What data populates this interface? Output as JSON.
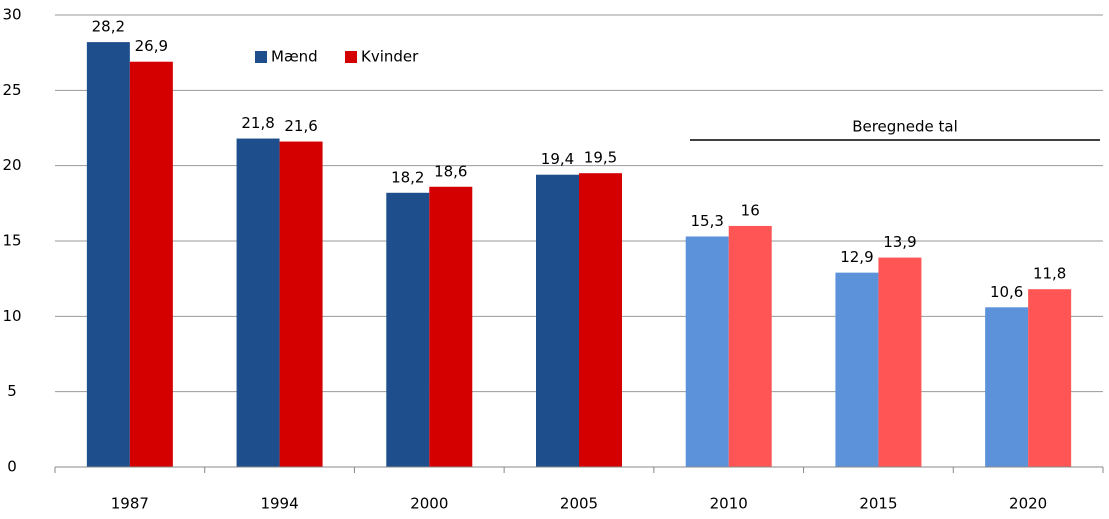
{
  "chart_data": {
    "type": "bar",
    "categories": [
      "1987",
      "1994",
      "2000",
      "2005",
      "2010",
      "2015",
      "2020"
    ],
    "series": [
      {
        "name": "Mænd",
        "color": "#1f4e8c",
        "colors": [
          "#1f4e8c",
          "#1f4e8c",
          "#1f4e8c",
          "#1f4e8c",
          "#5b92d9",
          "#5b92d9",
          "#5b92d9"
        ],
        "values": [
          28.2,
          21.8,
          18.2,
          19.4,
          15.3,
          12.9,
          10.6
        ],
        "value_labels": [
          "28,2",
          "21,8",
          "18,2",
          "19,4",
          "15,3",
          "12,9",
          "10,6"
        ]
      },
      {
        "name": "Kvinder",
        "color": "#d40000",
        "colors": [
          "#d40000",
          "#d40000",
          "#d40000",
          "#d40000",
          "#ff5555",
          "#ff5555",
          "#ff5555"
        ],
        "values": [
          26.9,
          21.6,
          18.6,
          19.5,
          16,
          13.9,
          11.8
        ],
        "value_labels": [
          "26,9",
          "21,6",
          "18,6",
          "19,5",
          "16",
          "13,9",
          "11,8"
        ]
      }
    ],
    "annotation": "Beregnede tal",
    "ylim": [
      0,
      30
    ],
    "yticks": [
      0,
      5,
      10,
      15,
      20,
      25,
      30
    ],
    "grid": true,
    "legend": "top-left"
  }
}
